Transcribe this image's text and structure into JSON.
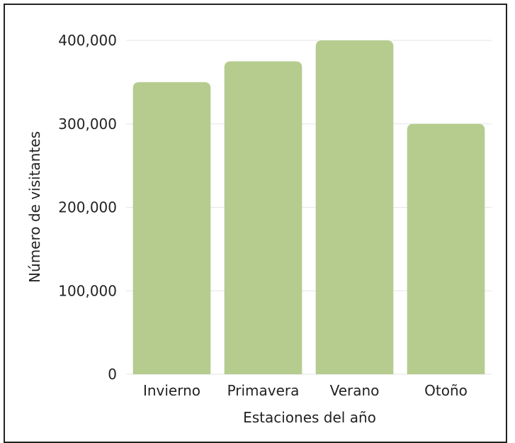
{
  "chart_data": {
    "type": "bar",
    "title": "",
    "xlabel": "Estaciones del año",
    "ylabel": "Número de visitantes",
    "categories": [
      "Invierno",
      "Primavera",
      "Verano",
      "Otoño"
    ],
    "values": [
      350000,
      375000,
      400000,
      300000
    ],
    "ylim": [
      0,
      400000
    ],
    "yticks": [
      0,
      100000,
      200000,
      300000,
      400000
    ],
    "ytick_labels": [
      "0",
      "100,000",
      "200,000",
      "300,000",
      "400,000"
    ],
    "grid": true,
    "legend": "none",
    "colors": {
      "bar": "#b5cc8e",
      "grid": "#e6e6e6",
      "text": "#222222"
    }
  }
}
